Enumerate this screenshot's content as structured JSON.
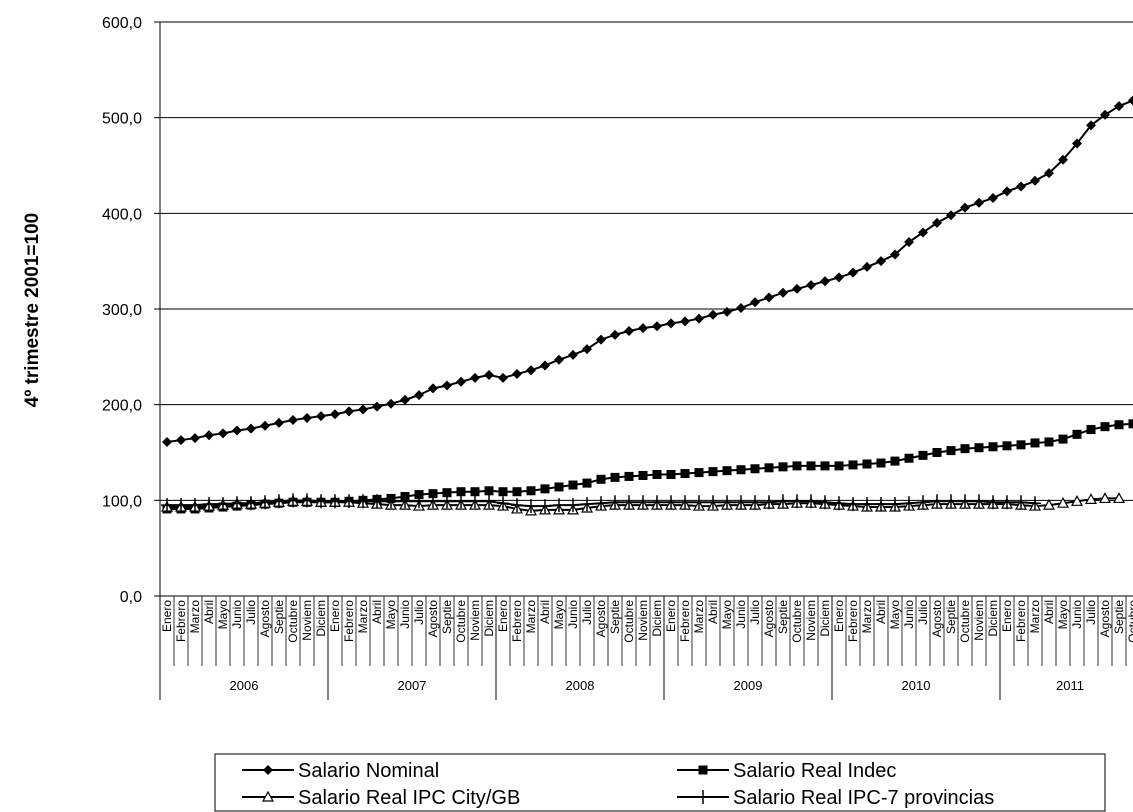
{
  "chart_data": {
    "type": "line",
    "y_label": "4º trimestre 2001=100",
    "categories": [
      "Enero",
      "Febrero",
      "Marzo",
      "Abril",
      "Mayo",
      "Junio",
      "Julio",
      "Agosto",
      "Septie",
      "Octubre",
      "Noviem",
      "Diciem",
      "Enero",
      "Febrero",
      "Marzo",
      "Abril",
      "Mayo",
      "Junio",
      "Julio",
      "Agosto",
      "Septie",
      "Octubre",
      "Noviem",
      "Diciem",
      "Enero",
      "Febrero",
      "Marzo",
      "Abril",
      "Mayo",
      "Junio",
      "Julio",
      "Agosto",
      "Septie",
      "Octubre",
      "Noviem",
      "Diciem",
      "Enero",
      "Febrero",
      "Marzo",
      "Abril",
      "Mayo",
      "Junio",
      "Julio",
      "Agosto",
      "Septie",
      "Octubre",
      "Noviem",
      "Diciem",
      "Enero",
      "Febrero",
      "Marzo",
      "Abril",
      "Mayo",
      "Junio",
      "Julio",
      "Agosto",
      "Septie",
      "Octubre",
      "Noviem",
      "Diciem",
      "Enero",
      "Febrero",
      "Marzo",
      "Abril",
      "Mayo",
      "Junio",
      "Julio",
      "Agosto",
      "Septie",
      "Octubre"
    ],
    "years": [
      "2006",
      "2007",
      "2008",
      "2009",
      "2010",
      "2011"
    ],
    "ylim": [
      0,
      600
    ],
    "yticks": [
      {
        "value": 0,
        "label": "0,0"
      },
      {
        "value": 100,
        "label": "100,0"
      },
      {
        "value": 200,
        "label": "200,0"
      },
      {
        "value": 300,
        "label": "300,0"
      },
      {
        "value": 400,
        "label": "400,0"
      },
      {
        "value": 500,
        "label": "500,0"
      },
      {
        "value": 600,
        "label": "600,0"
      }
    ],
    "grid": true,
    "series": [
      {
        "name": "Salario Nominal",
        "color": "#000000",
        "marker": "diamond",
        "values": [
          161,
          163,
          165,
          168,
          170,
          173,
          175,
          178,
          181,
          184,
          186,
          188,
          190,
          193,
          195,
          198,
          201,
          205,
          210,
          217,
          220,
          224,
          228,
          231,
          228,
          232,
          236,
          241,
          247,
          252,
          258,
          268,
          273,
          277,
          280,
          282,
          285,
          287,
          290,
          294,
          297,
          301,
          307,
          312,
          317,
          321,
          325,
          329,
          333,
          338,
          344,
          350,
          357,
          370,
          380,
          390,
          398,
          406,
          411,
          416,
          423,
          428,
          434,
          442,
          456,
          473,
          492,
          503,
          512,
          518
        ]
      },
      {
        "name": " Salario Real Indec",
        "color": "#000000",
        "marker": "square",
        "values": [
          91,
          91,
          91,
          92,
          93,
          94,
          95,
          96,
          97,
          98,
          98,
          98,
          98,
          99,
          100,
          101,
          102,
          104,
          106,
          107,
          108,
          109,
          109,
          110,
          109,
          109,
          110,
          112,
          114,
          116,
          118,
          122,
          124,
          125,
          126,
          127,
          127,
          128,
          129,
          130,
          131,
          132,
          133,
          134,
          135,
          136,
          136,
          136,
          136,
          137,
          138,
          139,
          141,
          144,
          147,
          150,
          152,
          154,
          155,
          156,
          157,
          158,
          160,
          161,
          164,
          169,
          174,
          177,
          179,
          180
        ]
      },
      {
        "name": "Salario Real IPC City/GB",
        "color": "#000000",
        "marker": "triangle",
        "values": [
          93,
          93,
          93,
          94,
          95,
          96,
          96,
          97,
          98,
          99,
          99,
          98,
          98,
          98,
          97,
          96,
          95,
          95,
          94,
          95,
          95,
          95,
          95,
          95,
          94,
          91,
          89,
          90,
          90,
          90,
          92,
          94,
          95,
          95,
          95,
          95,
          95,
          95,
          94,
          94,
          95,
          95,
          95,
          96,
          96,
          97,
          97,
          96,
          95,
          94,
          93,
          93,
          93,
          94,
          95,
          96,
          96,
          96,
          96,
          96,
          96,
          95,
          94,
          95,
          97,
          99,
          101,
          102,
          102,
          null
        ]
      },
      {
        "name": "Salario Real IPC-7 provincias",
        "color": "#000000",
        "marker": "plus",
        "values": [
          95,
          95,
          95,
          96,
          96,
          97,
          97,
          98,
          99,
          100,
          100,
          99,
          99,
          99,
          99,
          99,
          99,
          99,
          99,
          99,
          99,
          99,
          99,
          99,
          97,
          95,
          94,
          94,
          95,
          95,
          96,
          97,
          98,
          98,
          98,
          98,
          98,
          98,
          98,
          98,
          98,
          98,
          98,
          98,
          99,
          99,
          99,
          98,
          97,
          96,
          96,
          96,
          96,
          97,
          98,
          99,
          99,
          99,
          99,
          98,
          98,
          98,
          97,
          null,
          null,
          null,
          null,
          null,
          null,
          null
        ]
      }
    ]
  }
}
